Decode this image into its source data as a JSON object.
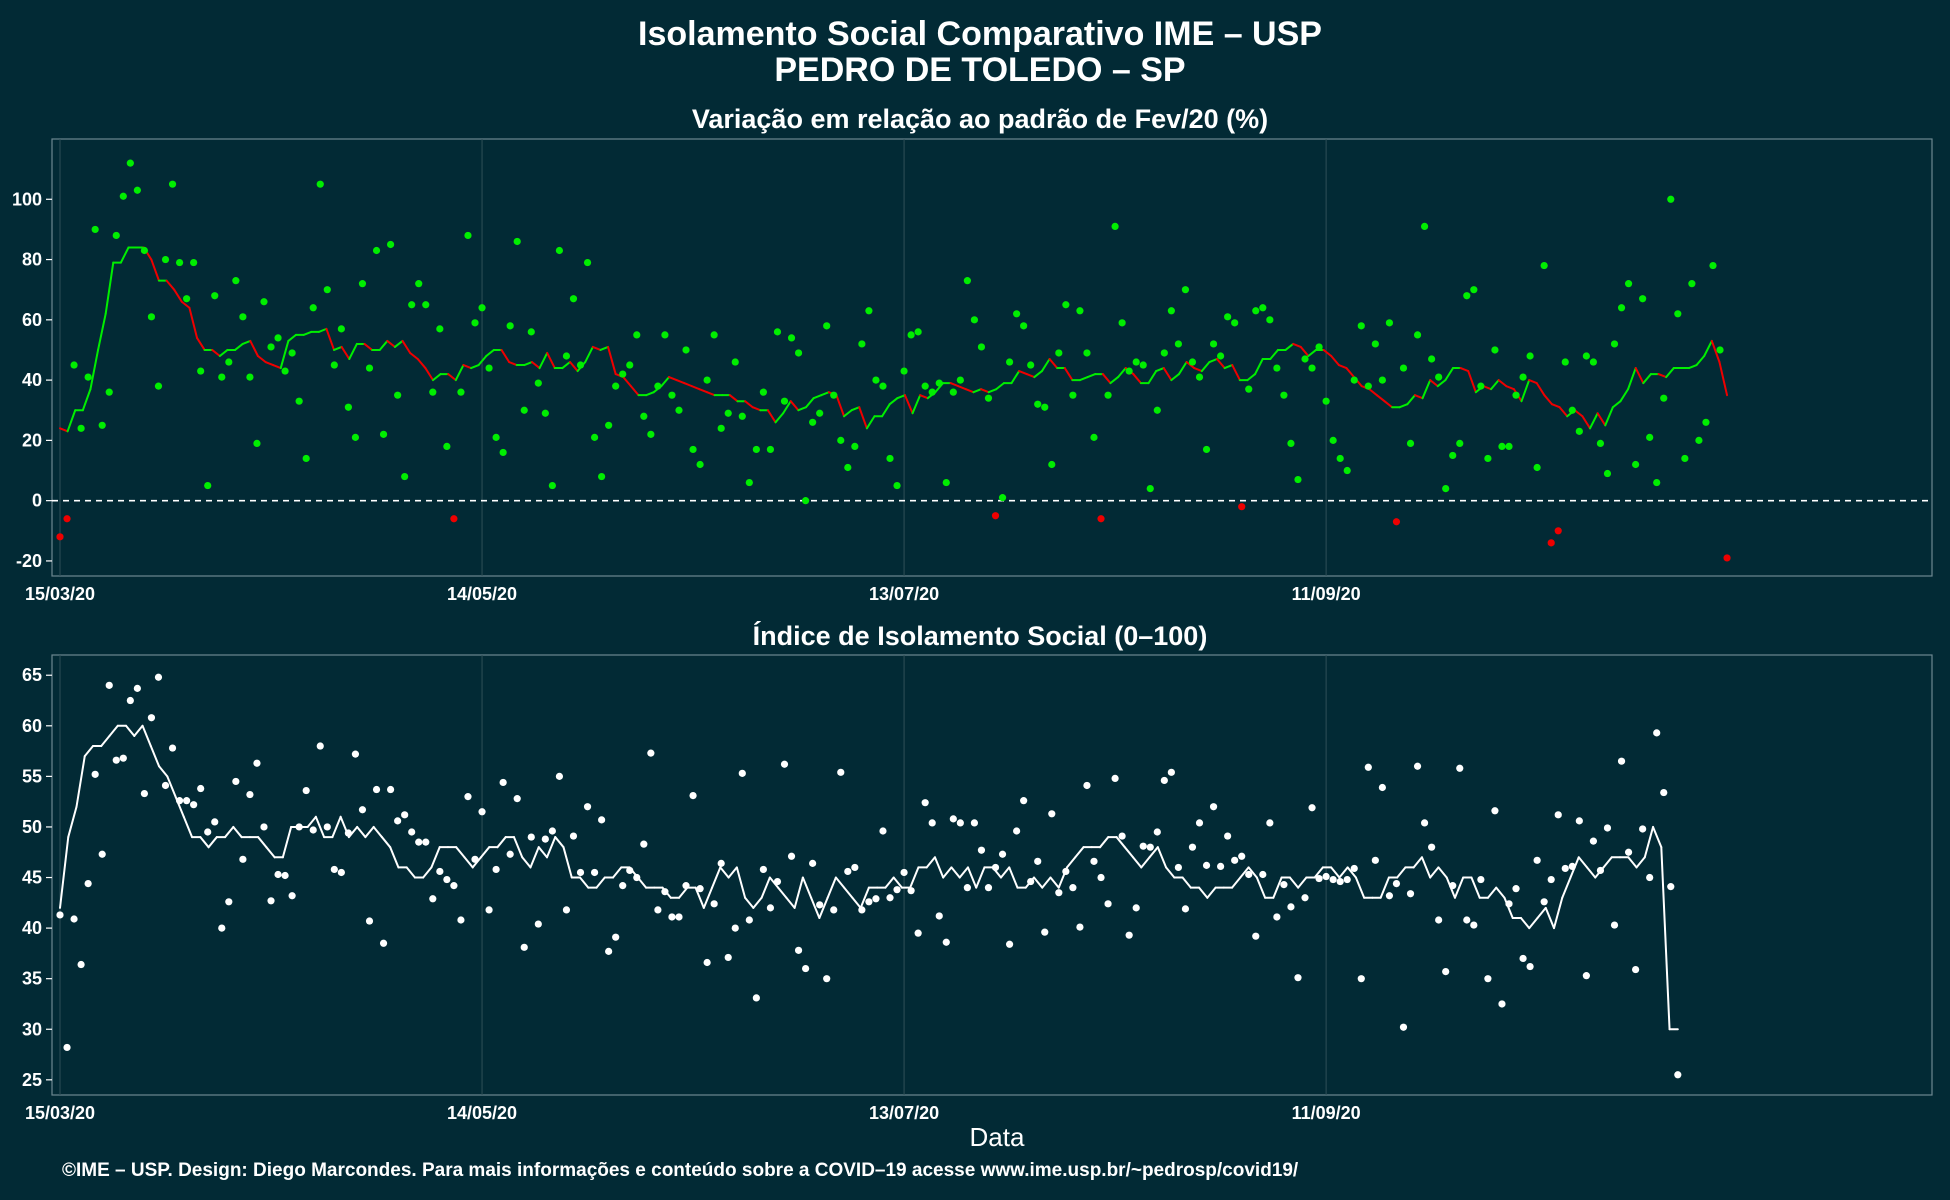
{
  "title_line1": "Isolamento Social Comparativo IME – USP",
  "title_line2": "PEDRO DE TOLEDO – SP",
  "x_label": "Data",
  "footer": "©IME – USP. Design: Diego Marcondes. Para mais informações e conteúdo sobre a COVID–19 acesse www.ime.usp.br/~pedrosp/covid19/",
  "colors": {
    "background": "#022a35",
    "positive": "#00ee00",
    "negative": "#ee0000",
    "index": "#ffffff",
    "grid": "#2f4f57"
  },
  "chart_data": [
    {
      "type": "scatter+line",
      "title": "Variação em relação ao padrão de Fev/20 (%)",
      "x_start": "15/03/20",
      "x_end": "05/12/20",
      "x_ticks": [
        "15/03/20",
        "14/05/20",
        "13/07/20",
        "11/09/20"
      ],
      "y_ticks": [
        -20,
        0,
        20,
        40,
        60,
        80,
        100
      ],
      "ylim": [
        -25,
        120
      ],
      "reference_line": 0,
      "grid": true,
      "point_color_rule": "green if value >= 0, red if value < 0",
      "points": [
        -12,
        -6,
        45,
        24,
        41,
        90,
        25,
        36,
        88,
        101,
        112,
        103,
        83,
        61,
        38,
        80,
        105,
        79,
        67,
        79,
        43,
        5,
        68,
        41,
        46,
        73,
        61,
        41,
        19,
        66,
        51,
        54,
        43,
        49,
        33,
        14,
        64,
        105,
        70,
        45,
        57,
        31,
        21,
        72,
        44,
        83,
        22,
        85,
        35,
        8,
        65,
        72,
        65,
        36,
        57,
        18,
        -6,
        36,
        88,
        59,
        64,
        44,
        21,
        16,
        58,
        86,
        30,
        56,
        39,
        29,
        5,
        83,
        48,
        67,
        45,
        79,
        21,
        8,
        25,
        38,
        42,
        45,
        55,
        28,
        22,
        38,
        55,
        35,
        30,
        50,
        17,
        12,
        40,
        55,
        24,
        29,
        46,
        28,
        6,
        17,
        36,
        17,
        56,
        33,
        54,
        49,
        0,
        26,
        29,
        58,
        35,
        20,
        11,
        18,
        52,
        63,
        40,
        38,
        14,
        5,
        43,
        55,
        56,
        38,
        36,
        39,
        6,
        36,
        40,
        73,
        60,
        51,
        34,
        -5,
        1,
        46,
        62,
        58,
        45,
        32,
        31,
        12,
        49,
        65,
        35,
        63,
        49,
        21,
        -6,
        35,
        91,
        59,
        43,
        46,
        45,
        4,
        30,
        49,
        63,
        52,
        70,
        46,
        41,
        17,
        52,
        48,
        61,
        59,
        -2,
        37,
        63,
        64,
        60,
        44,
        35,
        19,
        7,
        47,
        44,
        51,
        33,
        20,
        14,
        10,
        40,
        58,
        38,
        52,
        40,
        59,
        -7,
        44,
        19,
        55,
        91,
        47,
        41,
        4,
        15,
        19,
        68,
        70,
        38,
        14,
        50,
        18,
        18,
        35,
        41,
        48,
        11,
        78,
        -14,
        -10,
        46,
        30,
        23,
        48,
        46,
        19,
        9,
        52,
        64,
        72,
        12,
        67,
        21,
        6,
        34,
        100,
        62,
        14,
        72,
        20,
        26,
        78,
        50,
        -19
      ],
      "moving_average": [
        24,
        23,
        30,
        30,
        37,
        50,
        62,
        79,
        79,
        84,
        84,
        84,
        80,
        73,
        73,
        70,
        66,
        64,
        54,
        50,
        50,
        48,
        50,
        50,
        52,
        53,
        48,
        46,
        45,
        44,
        53,
        55,
        55,
        56,
        56,
        57,
        50,
        51,
        47,
        52,
        52,
        50,
        50,
        53,
        51,
        53,
        49,
        47,
        44,
        40,
        42,
        42,
        40,
        45,
        44,
        45,
        48,
        50,
        50,
        46,
        45,
        45,
        46,
        44,
        49,
        44,
        44,
        46,
        43,
        46,
        51,
        50,
        51,
        42,
        41,
        38,
        35,
        35,
        36,
        38,
        41,
        40,
        39,
        38,
        37,
        36,
        35,
        35,
        35,
        33,
        33,
        31,
        30,
        30,
        26,
        29,
        33,
        30,
        31,
        34,
        35,
        36,
        35,
        28,
        30,
        31,
        24,
        28,
        28,
        32,
        34,
        35,
        29,
        35,
        34,
        36,
        39,
        39,
        38,
        37,
        36,
        37,
        36,
        37,
        39,
        39,
        43,
        42,
        41,
        43,
        47,
        44,
        44,
        40,
        40,
        41,
        42,
        42,
        39,
        41,
        44,
        42,
        39,
        39,
        43,
        44,
        40,
        42,
        46,
        44,
        43,
        46,
        47,
        44,
        45,
        40,
        40,
        42,
        47,
        47,
        50,
        50,
        52,
        51,
        48,
        50,
        50,
        48,
        45,
        44,
        41,
        38,
        37,
        35,
        33,
        31,
        31,
        32,
        35,
        34,
        40,
        38,
        40,
        44,
        44,
        43,
        36,
        38,
        37,
        40,
        38,
        37,
        33,
        40,
        39,
        35,
        32,
        31,
        28,
        30,
        28,
        24,
        29,
        25,
        31,
        33,
        37,
        44,
        39,
        42,
        42,
        41,
        44,
        44,
        44,
        45,
        48,
        53,
        46,
        35
      ]
    },
    {
      "type": "scatter+line",
      "title": "Índice de Isolamento Social (0–100)",
      "x_start": "15/03/20",
      "x_end": "05/12/20",
      "x_ticks": [
        "15/03/20",
        "14/05/20",
        "13/07/20",
        "11/09/20"
      ],
      "y_ticks": [
        25,
        30,
        35,
        40,
        45,
        50,
        55,
        60,
        65
      ],
      "ylim": [
        23.5,
        67
      ],
      "grid": true,
      "points": [
        41.3,
        28.2,
        40.9,
        36.4,
        44.4,
        55.2,
        47.3,
        64,
        56.6,
        56.8,
        62.5,
        63.7,
        53.3,
        60.8,
        64.8,
        54.1,
        57.8,
        52.6,
        52.6,
        52.2,
        53.8,
        49.5,
        50.5,
        40,
        42.6,
        54.5,
        46.8,
        53.2,
        56.3,
        50,
        42.7,
        45.3,
        45.2,
        43.2,
        50,
        53.6,
        49.7,
        58,
        50,
        45.8,
        45.5,
        49.4,
        57.2,
        51.7,
        40.7,
        53.7,
        38.5,
        53.7,
        50.6,
        51.2,
        49.5,
        48.5,
        48.5,
        42.9,
        45.6,
        44.8,
        44.2,
        40.8,
        53,
        46.8,
        51.5,
        41.8,
        45.8,
        54.4,
        47.3,
        52.8,
        38.1,
        49,
        40.4,
        48.8,
        49.6,
        55,
        41.8,
        49.1,
        45.5,
        52,
        45.5,
        50.7,
        37.7,
        39.1,
        44.2,
        45.7,
        45,
        48.3,
        57.3,
        41.8,
        43.6,
        41.1,
        41.1,
        44.2,
        53.1,
        43.9,
        36.6,
        42.4,
        46.4,
        37.1,
        40,
        55.3,
        40.8,
        33.1,
        45.8,
        42,
        44.6,
        56.2,
        47.1,
        37.8,
        36,
        46.4,
        42.3,
        35,
        41.8,
        55.4,
        45.6,
        46,
        41.8,
        42.6,
        42.9,
        49.6,
        43,
        43.8,
        45.5,
        43.7,
        39.5,
        52.4,
        50.4,
        41.2,
        38.6,
        50.8,
        50.4,
        44,
        50.4,
        47.7,
        44,
        46,
        47.3,
        38.4,
        49.6,
        52.6,
        44.6,
        46.6,
        39.6,
        51.3,
        43.5,
        45.6,
        44,
        40.1,
        54.1,
        46.6,
        45,
        42.4,
        54.8,
        49.1,
        39.3,
        42,
        48.1,
        48,
        49.5,
        54.6,
        55.4,
        46,
        41.9,
        48,
        50.4,
        46.2,
        52,
        46.1,
        49.1,
        46.7,
        47.1,
        45.3,
        39.2,
        45.3,
        50.4,
        41.1,
        44.3,
        42.1,
        35.1,
        43,
        51.9,
        44.9,
        45.1,
        44.8,
        44.6,
        44.8,
        45.9,
        35,
        55.9,
        46.7,
        53.9,
        43.2,
        44.4,
        30.2,
        43.4,
        56,
        50.4,
        48,
        40.8,
        35.7,
        44.2,
        55.8,
        40.8,
        40.3,
        44.8,
        35,
        51.6,
        32.5,
        42.4,
        43.9,
        37,
        36.2,
        46.7,
        42.6,
        44.8,
        51.2,
        45.9,
        46.1,
        50.6,
        35.3,
        48.6,
        45.7,
        49.9,
        40.3,
        56.5,
        47.5,
        35.9,
        49.8,
        45,
        59.3,
        53.4,
        44.1,
        25.5
      ],
      "moving_average": [
        42,
        49,
        52,
        57,
        58,
        58,
        59,
        60,
        60,
        59,
        60,
        58,
        56,
        55,
        53,
        51,
        49,
        49,
        48,
        49,
        49,
        50,
        49,
        49,
        49,
        48,
        47,
        47,
        50,
        50,
        50,
        51,
        49,
        49,
        51,
        49,
        50,
        49,
        50,
        49,
        48,
        46,
        46,
        45,
        45,
        46,
        48,
        48,
        48,
        47,
        46,
        47,
        48,
        48,
        49,
        49,
        47,
        46,
        48,
        47,
        49,
        48,
        45,
        45,
        44,
        44,
        45,
        45,
        46,
        46,
        45,
        44,
        44,
        44,
        43,
        43,
        44,
        44,
        42,
        44,
        46,
        45,
        46,
        43,
        42,
        43,
        45,
        44,
        43,
        42,
        45,
        43,
        41,
        43,
        45,
        44,
        43,
        42,
        44,
        44,
        44,
        45,
        44,
        44,
        46,
        46,
        47,
        45,
        46,
        45,
        46,
        44,
        46,
        46,
        45,
        46,
        44,
        44,
        45,
        44,
        45,
        44,
        46,
        47,
        48,
        48,
        48,
        49,
        49,
        48,
        47,
        46,
        47,
        48,
        46,
        45,
        45,
        44,
        44,
        43,
        44,
        44,
        44,
        45,
        46,
        45,
        43,
        43,
        45,
        45,
        44,
        45,
        45,
        46,
        46,
        45,
        46,
        45,
        43,
        43,
        43,
        45,
        45,
        46,
        46,
        47,
        45,
        46,
        45,
        43,
        45,
        45,
        43,
        43,
        44,
        43,
        41,
        41,
        40,
        41,
        42,
        40,
        43,
        45,
        47,
        46,
        45,
        46,
        47,
        47,
        47,
        46,
        47,
        50,
        48,
        30,
        30
      ]
    }
  ]
}
